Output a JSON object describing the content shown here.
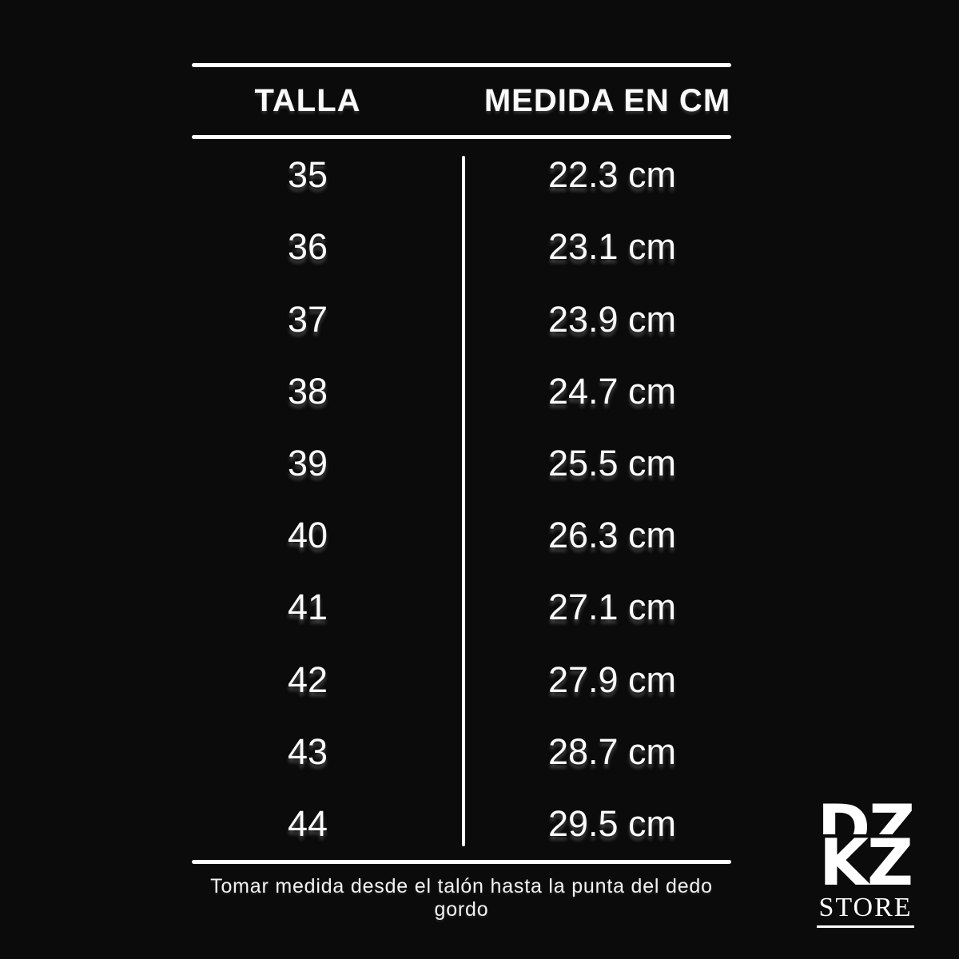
{
  "colors": {
    "background": "#0b0b0b",
    "text": "#ffffff"
  },
  "table": {
    "headers": [
      "TALLA",
      "MEDIDA EN CM"
    ],
    "rows": [
      {
        "talla": "35",
        "medida": "22.3 cm"
      },
      {
        "talla": "36",
        "medida": "23.1 cm"
      },
      {
        "talla": "37",
        "medida": "23.9 cm"
      },
      {
        "talla": "38",
        "medida": "24.7 cm"
      },
      {
        "talla": "39",
        "medida": "25.5 cm"
      },
      {
        "talla": "40",
        "medida": "26.3 cm"
      },
      {
        "talla": "41",
        "medida": "27.1 cm"
      },
      {
        "talla": "42",
        "medida": "27.9 cm"
      },
      {
        "talla": "43",
        "medida": "28.7 cm"
      },
      {
        "talla": "44",
        "medida": "29.5 cm"
      }
    ]
  },
  "footnote": "Tomar medida desde el talón hasta la punta del dedo gordo",
  "logo": {
    "line1": "DZ",
    "line2": "KZ",
    "line3": "STORE"
  },
  "chart_data": {
    "type": "table",
    "title": "",
    "columns": [
      "TALLA",
      "MEDIDA EN CM"
    ],
    "rows": [
      [
        "35",
        "22.3 cm"
      ],
      [
        "36",
        "23.1 cm"
      ],
      [
        "37",
        "23.9 cm"
      ],
      [
        "38",
        "24.7 cm"
      ],
      [
        "39",
        "25.5 cm"
      ],
      [
        "40",
        "26.3 cm"
      ],
      [
        "41",
        "27.1 cm"
      ],
      [
        "42",
        "27.9 cm"
      ],
      [
        "43",
        "28.7 cm"
      ],
      [
        "44",
        "29.5 cm"
      ]
    ],
    "footnote": "Tomar medida desde el talón hasta la punta del dedo gordo",
    "layout_hints": {
      "grid": "horizontal rules top/header/bottom, single vertical divider between columns",
      "background": "black",
      "foreground": "white"
    }
  }
}
